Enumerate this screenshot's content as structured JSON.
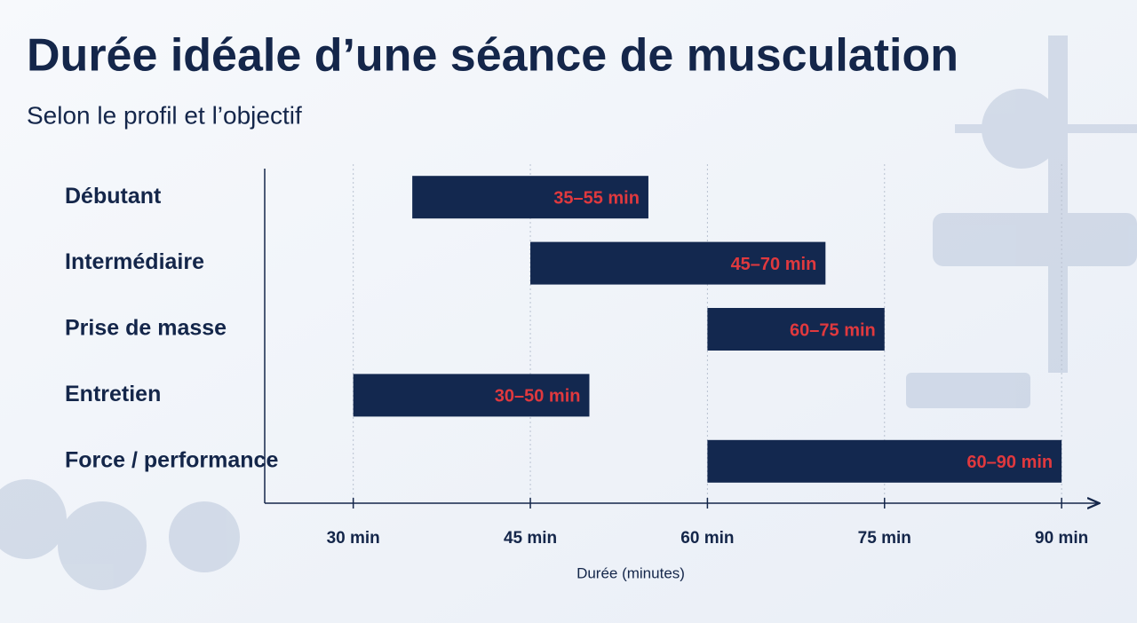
{
  "chart_data": {
    "type": "range_bar",
    "title": "Durée idéale d’une séance de musculation",
    "subtitle": "Selon le profil et l’objectif",
    "x_label": "Durée (minutes)",
    "categories": [
      "Débutant",
      "Intermédiaire",
      "Prise de masse",
      "Entretien",
      "Force / performance"
    ],
    "starts": [
      35,
      45,
      60,
      30,
      60
    ],
    "ends": [
      55,
      70,
      75,
      50,
      90
    ],
    "value_labels": [
      "35–55 min",
      "45–70 min",
      "60–75 min",
      "30–50 min",
      "60–90 min"
    ],
    "color": "#13284f",
    "label_color": "#e0393e",
    "xlim": [
      22.5,
      93
    ],
    "xticks": [
      {
        "value": 30,
        "label": "30 min"
      },
      {
        "value": 45,
        "label": "45 min"
      },
      {
        "value": 60,
        "label": "60 min"
      },
      {
        "value": 75,
        "label": "75 min"
      },
      {
        "value": 90,
        "label": "90 min"
      }
    ],
    "grid": true
  }
}
